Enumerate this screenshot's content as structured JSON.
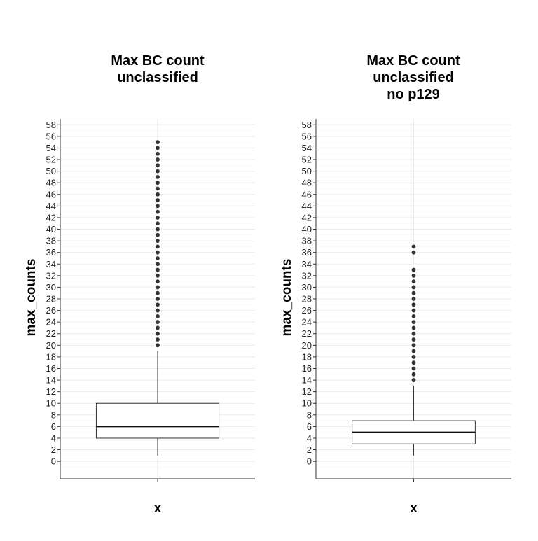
{
  "chart_data": [
    {
      "type": "box",
      "title_lines": [
        "Max BC count",
        "unclassified"
      ],
      "xlabel": "x",
      "ylabel": "max_counts",
      "y_ticks": [
        0,
        2,
        4,
        6,
        8,
        10,
        12,
        14,
        16,
        18,
        20,
        22,
        24,
        26,
        28,
        30,
        32,
        34,
        36,
        38,
        40,
        42,
        44,
        46,
        48,
        50,
        52,
        54,
        56,
        58
      ],
      "ylim": [
        -3,
        59
      ],
      "grid": true,
      "box": {
        "min": 1,
        "q1": 4,
        "median": 6,
        "q3": 10,
        "max": 19
      },
      "outliers": [
        20,
        21,
        22,
        23,
        24,
        25,
        26,
        27,
        28,
        29,
        30,
        31,
        32,
        33,
        34,
        35,
        36,
        37,
        38,
        39,
        40,
        41,
        42,
        43,
        44,
        45,
        46,
        47,
        48,
        49,
        50,
        51,
        52,
        53,
        54,
        55
      ]
    },
    {
      "type": "box",
      "title_lines": [
        "Max BC count",
        "unclassified",
        "no p129"
      ],
      "xlabel": "x",
      "ylabel": "max_counts",
      "y_ticks": [
        0,
        2,
        4,
        6,
        8,
        10,
        12,
        14,
        16,
        18,
        20,
        22,
        24,
        26,
        28,
        30,
        32,
        34,
        36,
        38,
        40,
        42,
        44,
        46,
        48,
        50,
        52,
        54,
        56,
        58
      ],
      "ylim": [
        -3,
        59
      ],
      "grid": true,
      "box": {
        "min": 1,
        "q1": 3,
        "median": 5,
        "q3": 7,
        "max": 13
      },
      "outliers": [
        14,
        15,
        16,
        17,
        18,
        19,
        20,
        21,
        22,
        23,
        24,
        25,
        26,
        27,
        28,
        29,
        30,
        31,
        32,
        33,
        36,
        37
      ]
    }
  ]
}
